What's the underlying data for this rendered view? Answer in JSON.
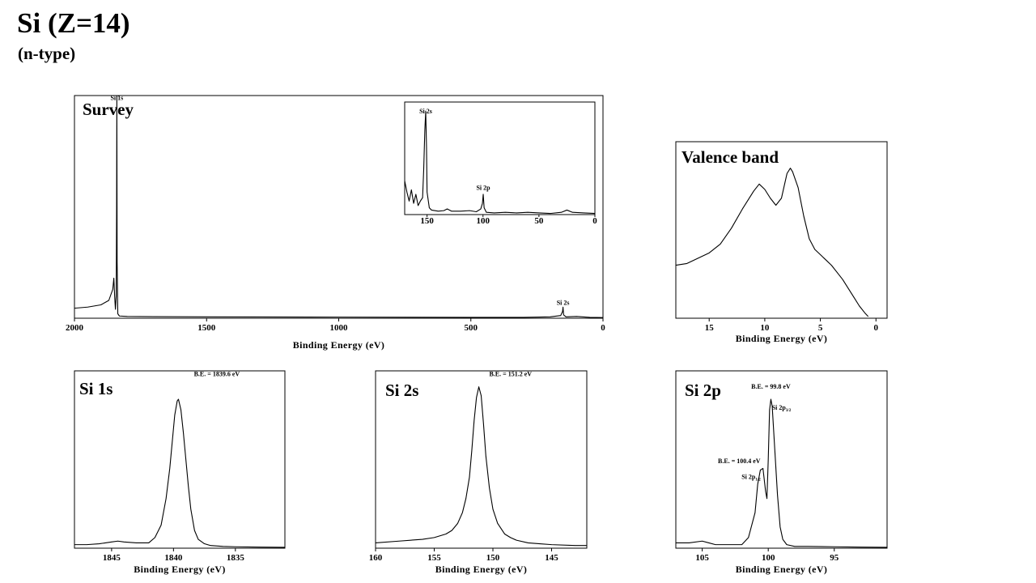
{
  "header": {
    "title": "Si (Z=14)",
    "subtitle": "(n-type)"
  },
  "chart_data": [
    {
      "id": "survey",
      "type": "line",
      "title": "Survey",
      "xlabel": "Binding Energy (eV)",
      "ylabel": "",
      "xlim": [
        2000,
        0
      ],
      "ylim": [
        0,
        1
      ],
      "xticks": [
        2000,
        1500,
        1000,
        500,
        0
      ],
      "grid": false,
      "annotations": [
        {
          "text": "Si 1s",
          "x": 1839.6,
          "y": 0.98
        },
        {
          "text": "Si 2s",
          "x": 151.2,
          "y": 0.06
        }
      ],
      "series": [
        {
          "x": [
            2000,
            1950,
            1900,
            1870,
            1855,
            1851,
            1848,
            1845,
            1842,
            1840.5,
            1839.6,
            1838.5,
            1836,
            1830,
            1800,
            1700,
            1500,
            1000,
            500,
            300,
            200,
            160,
            153,
            151.2,
            149,
            140,
            100,
            50,
            0
          ],
          "y": [
            0.045,
            0.05,
            0.06,
            0.08,
            0.13,
            0.18,
            0.1,
            0.04,
            0.1,
            0.5,
            1.0,
            0.25,
            0.02,
            0.01,
            0.008,
            0.007,
            0.006,
            0.005,
            0.004,
            0.004,
            0.006,
            0.012,
            0.03,
            0.05,
            0.015,
            0.006,
            0.008,
            0.004,
            0.003
          ]
        }
      ]
    },
    {
      "id": "survey-inset",
      "type": "line",
      "title": "",
      "xlabel": "",
      "ylabel": "",
      "xlim": [
        170,
        0
      ],
      "ylim": [
        0,
        1
      ],
      "xticks": [
        150,
        100,
        50,
        0
      ],
      "grid": false,
      "annotations": [
        {
          "text": "Si 2s",
          "x": 151.2,
          "y": 0.9
        },
        {
          "text": "Si 2p",
          "x": 99.8,
          "y": 0.22
        }
      ],
      "series": [
        {
          "x": [
            170,
            168,
            166,
            164,
            162,
            160,
            158,
            156,
            154,
            153,
            152,
            151.2,
            150.5,
            150,
            148,
            146,
            140,
            135,
            132,
            128,
            120,
            112,
            106,
            102,
            100.5,
            99.8,
            99,
            97,
            90,
            80,
            70,
            60,
            50,
            40,
            30,
            25,
            20,
            10,
            0
          ],
          "y": [
            0.3,
            0.2,
            0.12,
            0.22,
            0.1,
            0.18,
            0.08,
            0.12,
            0.15,
            0.4,
            0.75,
            0.92,
            0.6,
            0.2,
            0.06,
            0.04,
            0.03,
            0.035,
            0.05,
            0.03,
            0.03,
            0.035,
            0.025,
            0.05,
            0.1,
            0.18,
            0.06,
            0.02,
            0.015,
            0.02,
            0.015,
            0.02,
            0.015,
            0.01,
            0.02,
            0.04,
            0.02,
            0.015,
            0.01
          ]
        }
      ]
    },
    {
      "id": "valence-band",
      "type": "line",
      "title": "Valence band",
      "xlabel": "Binding Energy (eV)",
      "ylabel": "",
      "xlim": [
        18,
        -1
      ],
      "ylim": [
        0,
        1
      ],
      "xticks": [
        15,
        10,
        5,
        0
      ],
      "grid": false,
      "annotations": [],
      "series": [
        {
          "x": [
            18,
            17,
            16,
            15,
            14,
            13,
            12,
            11,
            10.5,
            10,
            9.5,
            9,
            8.5,
            8,
            7.7,
            7.5,
            7,
            6.5,
            6,
            5.5,
            5,
            4.5,
            4,
            3.5,
            3,
            2.5,
            2,
            1.5,
            1,
            0.7
          ],
          "y": [
            0.3,
            0.31,
            0.34,
            0.37,
            0.42,
            0.51,
            0.62,
            0.72,
            0.76,
            0.73,
            0.68,
            0.64,
            0.68,
            0.82,
            0.85,
            0.83,
            0.74,
            0.58,
            0.45,
            0.39,
            0.36,
            0.33,
            0.3,
            0.26,
            0.22,
            0.17,
            0.12,
            0.07,
            0.03,
            0.01
          ]
        }
      ]
    },
    {
      "id": "si-1s",
      "type": "line",
      "title": "Si 1s",
      "xlabel": "Binding Energy (eV)",
      "ylabel": "",
      "xlim": [
        1848,
        1831
      ],
      "ylim": [
        0,
        1
      ],
      "xticks": [
        1845,
        1840,
        1835
      ],
      "grid": false,
      "annotations": [
        {
          "text": "B.E. = 1839.6 eV",
          "x": 1836.5,
          "y": 0.97
        }
      ],
      "series": [
        {
          "x": [
            1848,
            1847,
            1846,
            1845,
            1844.5,
            1844,
            1843,
            1842,
            1841.5,
            1841,
            1840.6,
            1840.3,
            1840.1,
            1839.9,
            1839.7,
            1839.6,
            1839.4,
            1839.2,
            1839,
            1838.8,
            1838.6,
            1838.3,
            1838,
            1837.5,
            1837,
            1836,
            1835,
            1833,
            1831
          ],
          "y": [
            0.02,
            0.02,
            0.025,
            0.035,
            0.04,
            0.035,
            0.03,
            0.03,
            0.06,
            0.13,
            0.28,
            0.45,
            0.6,
            0.75,
            0.83,
            0.84,
            0.78,
            0.65,
            0.5,
            0.35,
            0.22,
            0.1,
            0.05,
            0.025,
            0.015,
            0.01,
            0.008,
            0.006,
            0.005
          ]
        }
      ]
    },
    {
      "id": "si-2s",
      "type": "line",
      "title": "Si 2s",
      "xlabel": "Binding Energy (eV)",
      "ylabel": "",
      "xlim": [
        160,
        142
      ],
      "ylim": [
        0,
        1
      ],
      "xticks": [
        160,
        155,
        150,
        145
      ],
      "grid": false,
      "annotations": [
        {
          "text": "B.E. = 151.2 eV",
          "x": 148.5,
          "y": 0.97
        }
      ],
      "series": [
        {
          "x": [
            160,
            158,
            156,
            155,
            154,
            153.5,
            153,
            152.6,
            152.3,
            152,
            151.8,
            151.6,
            151.4,
            151.2,
            151,
            150.8,
            150.6,
            150.3,
            150,
            149.6,
            149,
            148.5,
            148,
            147,
            146,
            145,
            143,
            142
          ],
          "y": [
            0.03,
            0.04,
            0.05,
            0.06,
            0.08,
            0.1,
            0.14,
            0.2,
            0.28,
            0.4,
            0.55,
            0.72,
            0.85,
            0.91,
            0.86,
            0.7,
            0.52,
            0.34,
            0.22,
            0.14,
            0.08,
            0.06,
            0.045,
            0.03,
            0.025,
            0.02,
            0.015,
            0.015
          ]
        }
      ]
    },
    {
      "id": "si-2p",
      "type": "line",
      "title": "Si 2p",
      "xlabel": "Binding Energy (eV)",
      "ylabel": "",
      "xlim": [
        107,
        91
      ],
      "ylim": [
        0,
        1
      ],
      "xticks": [
        105,
        100,
        95
      ],
      "grid": false,
      "annotations": [
        {
          "text": "B.E. = 99.8 eV",
          "x": 99.8,
          "y": 0.9
        },
        {
          "text": "Si 2p3/2",
          "x": 99.0,
          "y": 0.78
        },
        {
          "text": "B.E. = 100.4 eV",
          "x": 102.2,
          "y": 0.48
        },
        {
          "text": "Si 2p1/2",
          "x": 101.3,
          "y": 0.39
        }
      ],
      "series": [
        {
          "x": [
            107,
            106,
            105,
            104.5,
            104,
            103,
            102,
            101.5,
            101,
            100.8,
            100.6,
            100.4,
            100.2,
            100.1,
            100,
            99.9,
            99.8,
            99.7,
            99.5,
            99.3,
            99.1,
            98.9,
            98.6,
            98,
            97,
            95,
            93,
            91
          ],
          "y": [
            0.03,
            0.03,
            0.04,
            0.03,
            0.02,
            0.02,
            0.02,
            0.06,
            0.2,
            0.36,
            0.44,
            0.45,
            0.32,
            0.28,
            0.5,
            0.78,
            0.84,
            0.8,
            0.55,
            0.3,
            0.12,
            0.05,
            0.02,
            0.01,
            0.01,
            0.008,
            0.006,
            0.005
          ]
        }
      ]
    }
  ]
}
